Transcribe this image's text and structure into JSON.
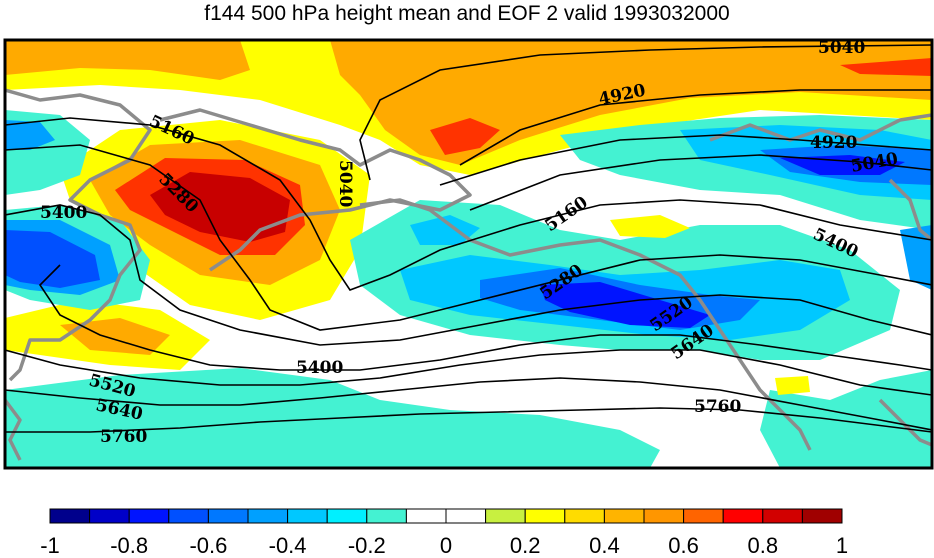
{
  "title": "f144 500 hPa height mean and EOF 2 valid 1993032000",
  "colorbar": {
    "colors": [
      "#00008c",
      "#0000c8",
      "#0014ff",
      "#0050ff",
      "#0078ff",
      "#00a0ff",
      "#00c8ff",
      "#00f0ff",
      "#44f2d2",
      "#ffffff",
      "#ffffff",
      "#c8f040",
      "#ffff00",
      "#ffdc00",
      "#ffb400",
      "#ff9600",
      "#ff6400",
      "#ff0000",
      "#d20000",
      "#a00000"
    ],
    "labels": [
      "-1",
      "-0.8",
      "-0.6",
      "-0.4",
      "-0.2",
      "0",
      "0.2",
      "0.4",
      "0.6",
      "0.8",
      "1"
    ]
  },
  "contour_labels": [
    "5040",
    "4920",
    "4920",
    "5040",
    "5160",
    "5040",
    "5280",
    "5400",
    "5160",
    "5400",
    "5280",
    "5520",
    "5640",
    "5400",
    "5520",
    "5640",
    "5760",
    "5760"
  ],
  "colors": {
    "orange": "#ffaa00",
    "yellow": "#ffff00",
    "cyan": "#44f2d2",
    "red": "#ff3300",
    "darkred": "#c80000",
    "coast": "#8c8c8c"
  }
}
